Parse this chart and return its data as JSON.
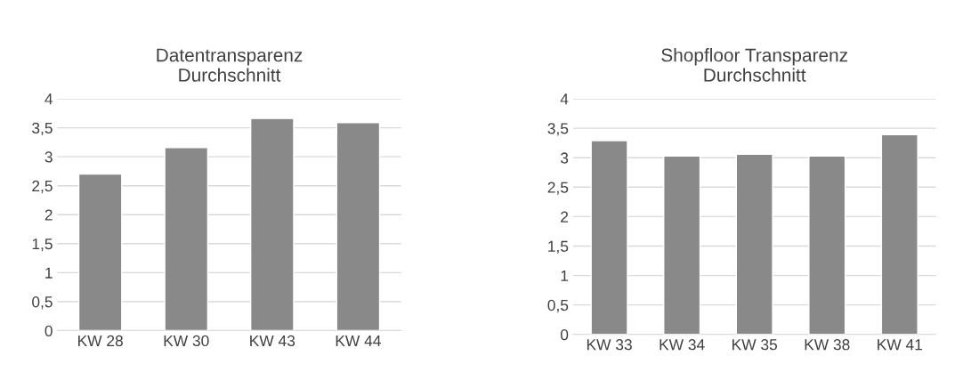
{
  "chart_data": [
    {
      "type": "bar",
      "title": "Datentransparenz\nDurchschnitt",
      "categories": [
        "KW 28",
        "KW 30",
        "KW 43",
        "KW 44"
      ],
      "values": [
        2.7,
        3.16,
        3.66,
        3.59
      ],
      "color": "#898989",
      "ylim": [
        0,
        4
      ],
      "yticks": [
        0,
        {
          "value": 0.5,
          "label": "0,5"
        },
        1,
        {
          "value": 1.5,
          "label": "1,5"
        },
        2,
        {
          "value": 2.5,
          "label": "2,5"
        },
        3,
        {
          "value": 3.5,
          "label": "3,5"
        },
        4
      ],
      "grid": "y"
    },
    {
      "type": "bar",
      "title": "Shopfloor Transparenz\nDurchschnitt",
      "categories": [
        "KW 33",
        "KW 34",
        "KW 35",
        "KW 38",
        "KW 41"
      ],
      "values": [
        3.29,
        3.03,
        3.06,
        3.03,
        3.39
      ],
      "color": "#898989",
      "ylim": [
        0,
        4
      ],
      "yticks": [
        0,
        {
          "value": 0.5,
          "label": "0,5"
        },
        1,
        {
          "value": 1.5,
          "label": "1,5"
        },
        2,
        {
          "value": 2.5,
          "label": "2,5"
        },
        3,
        {
          "value": 3.5,
          "label": "3,5"
        },
        4
      ],
      "grid": "y"
    }
  ]
}
